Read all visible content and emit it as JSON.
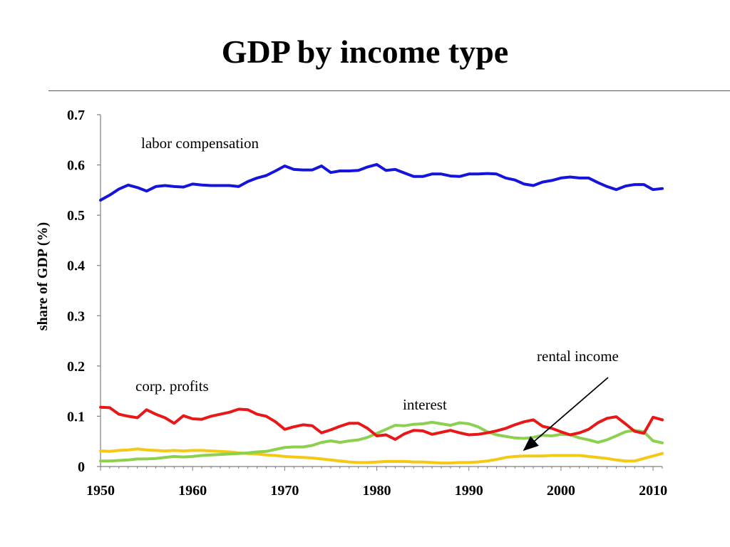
{
  "slide": {
    "title": "GDP by income type"
  },
  "chart_data": {
    "type": "line",
    "title": "",
    "xlabel": "",
    "ylabel": "share of GDP (%)",
    "xlim": [
      1950,
      2011
    ],
    "ylim": [
      0,
      0.7
    ],
    "x_ticks": [
      "1950",
      "1960",
      "1970",
      "1980",
      "1990",
      "2000",
      "2010"
    ],
    "y_ticks": [
      "0",
      "0.1",
      "0.2",
      "0.3",
      "0.4",
      "0.5",
      "0.6",
      "0.7"
    ],
    "grid": false,
    "legend": "none",
    "x": [
      1950,
      1951,
      1952,
      1953,
      1954,
      1955,
      1956,
      1957,
      1958,
      1959,
      1960,
      1961,
      1962,
      1963,
      1964,
      1965,
      1966,
      1967,
      1968,
      1969,
      1970,
      1971,
      1972,
      1973,
      1974,
      1975,
      1976,
      1977,
      1978,
      1979,
      1980,
      1981,
      1982,
      1983,
      1984,
      1985,
      1986,
      1987,
      1988,
      1989,
      1990,
      1991,
      1992,
      1993,
      1994,
      1995,
      1996,
      1997,
      1998,
      1999,
      2000,
      2001,
      2002,
      2003,
      2004,
      2005,
      2006,
      2007,
      2008,
      2009,
      2010,
      2011
    ],
    "series": [
      {
        "name": "labor compensation",
        "color": "#1414dc",
        "values": [
          0.53,
          0.54,
          0.552,
          0.56,
          0.555,
          0.548,
          0.557,
          0.559,
          0.557,
          0.556,
          0.562,
          0.56,
          0.559,
          0.559,
          0.559,
          0.557,
          0.567,
          0.574,
          0.579,
          0.588,
          0.598,
          0.591,
          0.59,
          0.59,
          0.598,
          0.585,
          0.588,
          0.588,
          0.589,
          0.596,
          0.601,
          0.589,
          0.591,
          0.584,
          0.577,
          0.577,
          0.582,
          0.582,
          0.578,
          0.577,
          0.582,
          0.582,
          0.583,
          0.582,
          0.574,
          0.57,
          0.562,
          0.559,
          0.566,
          0.569,
          0.574,
          0.576,
          0.574,
          0.574,
          0.565,
          0.557,
          0.551,
          0.558,
          0.561,
          0.561,
          0.551,
          0.553
        ]
      },
      {
        "name": "corp. profits",
        "color": "#e81818",
        "values": [
          0.118,
          0.117,
          0.104,
          0.1,
          0.097,
          0.113,
          0.104,
          0.097,
          0.086,
          0.101,
          0.095,
          0.094,
          0.1,
          0.104,
          0.108,
          0.114,
          0.113,
          0.104,
          0.1,
          0.089,
          0.074,
          0.079,
          0.083,
          0.081,
          0.067,
          0.073,
          0.08,
          0.086,
          0.086,
          0.076,
          0.061,
          0.063,
          0.054,
          0.065,
          0.072,
          0.071,
          0.064,
          0.068,
          0.072,
          0.067,
          0.063,
          0.064,
          0.067,
          0.071,
          0.076,
          0.083,
          0.089,
          0.093,
          0.08,
          0.076,
          0.069,
          0.063,
          0.067,
          0.074,
          0.087,
          0.096,
          0.099,
          0.085,
          0.07,
          0.066,
          0.098,
          0.093
        ]
      },
      {
        "name": "interest",
        "color": "#8cd050",
        "values": [
          0.011,
          0.011,
          0.012,
          0.013,
          0.015,
          0.015,
          0.016,
          0.018,
          0.02,
          0.019,
          0.02,
          0.022,
          0.023,
          0.024,
          0.025,
          0.026,
          0.027,
          0.029,
          0.03,
          0.034,
          0.038,
          0.039,
          0.039,
          0.042,
          0.048,
          0.051,
          0.048,
          0.051,
          0.053,
          0.058,
          0.066,
          0.074,
          0.082,
          0.081,
          0.084,
          0.085,
          0.088,
          0.085,
          0.082,
          0.087,
          0.085,
          0.079,
          0.069,
          0.063,
          0.06,
          0.057,
          0.056,
          0.058,
          0.062,
          0.061,
          0.064,
          0.063,
          0.057,
          0.053,
          0.048,
          0.053,
          0.061,
          0.069,
          0.072,
          0.069,
          0.051,
          0.047
        ]
      },
      {
        "name": "rental income",
        "color": "#f5c814",
        "values": [
          0.031,
          0.03,
          0.032,
          0.033,
          0.035,
          0.033,
          0.032,
          0.031,
          0.032,
          0.031,
          0.032,
          0.032,
          0.031,
          0.03,
          0.029,
          0.027,
          0.026,
          0.025,
          0.023,
          0.022,
          0.02,
          0.019,
          0.018,
          0.017,
          0.015,
          0.013,
          0.011,
          0.009,
          0.008,
          0.008,
          0.009,
          0.01,
          0.01,
          0.01,
          0.009,
          0.009,
          0.008,
          0.007,
          0.007,
          0.008,
          0.008,
          0.009,
          0.011,
          0.014,
          0.018,
          0.02,
          0.021,
          0.021,
          0.021,
          0.022,
          0.022,
          0.022,
          0.022,
          0.02,
          0.018,
          0.016,
          0.013,
          0.011,
          0.011,
          0.016,
          0.021,
          0.026
        ]
      }
    ],
    "annotations": {
      "labor": "labor compensation",
      "profits": "corp. profits",
      "interest": "interest",
      "rental": "rental income"
    }
  }
}
